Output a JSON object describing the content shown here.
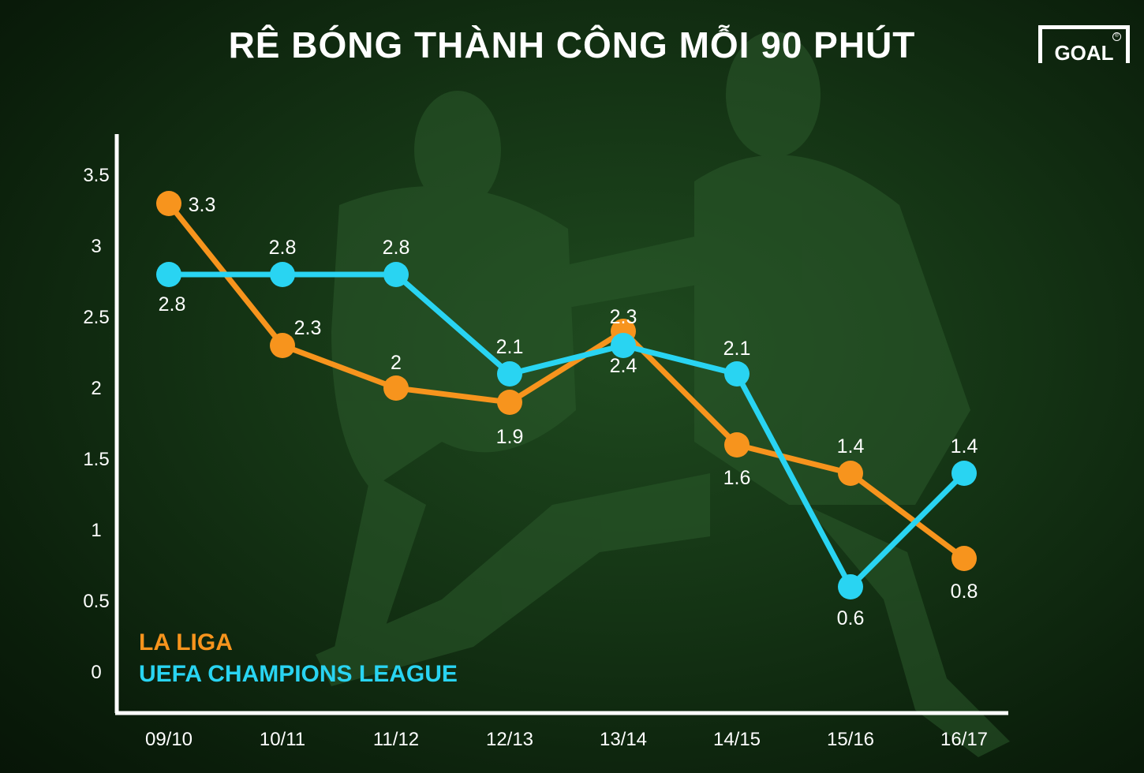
{
  "title": "RÊ BÓNG THÀNH CÔNG MỖI 90 PHÚT",
  "logo": {
    "text": "GOAL",
    "mark": "®"
  },
  "colors": {
    "la_liga": "#f7941d",
    "ucl": "#29d4f2",
    "axis": "#ffffff"
  },
  "chart_data": {
    "type": "line",
    "title": "RÊ BÓNG THÀNH CÔNG MỖI 90 PHÚT",
    "categories": [
      "09/10",
      "10/11",
      "11/12",
      "12/13",
      "13/14",
      "14/15",
      "15/16",
      "16/17"
    ],
    "yticks": [
      "0",
      "0.5",
      "1",
      "1.5",
      "2",
      "2.5",
      "3",
      "3.5"
    ],
    "ylim": [
      0,
      3.5
    ],
    "grid": false,
    "legend_position": "bottom-left",
    "series": [
      {
        "name": "LA LIGA",
        "color": "#f7941d",
        "values": [
          3.3,
          2.3,
          2,
          1.9,
          2.4,
          1.6,
          1.4,
          0.8
        ],
        "labels": [
          "3.3",
          "2.3",
          "2",
          "1.9",
          "2.4",
          "1.6",
          "1.4",
          "0.8"
        ]
      },
      {
        "name": "UEFA CHAMPIONS LEAGUE",
        "color": "#29d4f2",
        "values": [
          2.8,
          2.8,
          2.8,
          2.1,
          2.3,
          2.1,
          0.6,
          1.4
        ],
        "labels": [
          "2.8",
          "2.8",
          "2.8",
          "2.1",
          "2.3",
          "2.1",
          "0.6",
          "1.4"
        ]
      }
    ]
  }
}
